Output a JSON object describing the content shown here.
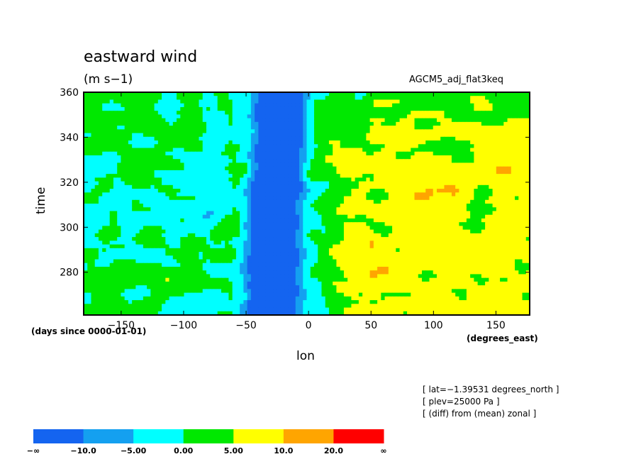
{
  "chart_data": {
    "type": "heatmap",
    "title": "eastward wind",
    "units": "(m s−1)",
    "run_label": "AGCM5_adj_flat3keq",
    "xlabel": "lon",
    "ylabel": "time",
    "x_units": "(degrees_east)",
    "y_units": "(days since 0000-01-01)",
    "xlim": [
      -180,
      177
    ],
    "ylim": [
      261,
      360
    ],
    "x_ticks": [
      -150,
      -100,
      -50,
      0,
      50,
      100,
      150
    ],
    "y_ticks": [
      280,
      300,
      320,
      340,
      360
    ],
    "x_tick_labels": [
      "−150",
      "−100",
      "−50",
      "0",
      "50",
      "100",
      "150"
    ],
    "y_tick_labels": [
      "280",
      "300",
      "320",
      "340",
      "360"
    ],
    "notes": [
      "[ lat=−1.39531 degrees_north ]",
      "[ plev=25000 Pa ]",
      "[ (diff) from (mean) zonal ]"
    ],
    "colorbar": {
      "labels": [
        "−∞",
        "−10.0",
        "−5.00",
        "0.00",
        "5.00",
        "10.0",
        "20.0",
        "∞"
      ],
      "colors": [
        "#1464f0",
        "#14a0f0",
        "#00ffff",
        "#00e800",
        "#ffff00",
        "#ffa500",
        "#ff0000"
      ],
      "bounds": [
        -10,
        -5,
        0,
        5,
        10,
        20
      ]
    },
    "grid": false,
    "features": [
      {
        "name": "westerly-anomaly-band",
        "lon": [
          -55,
          0
        ],
        "time": [
          261,
          360
        ],
        "level": "below −10.0"
      },
      {
        "name": "easterly-anomaly-band",
        "lon": [
          10,
          177
        ],
        "time": [
          261,
          345
        ],
        "level": "5.00 to 20.0"
      }
    ]
  }
}
